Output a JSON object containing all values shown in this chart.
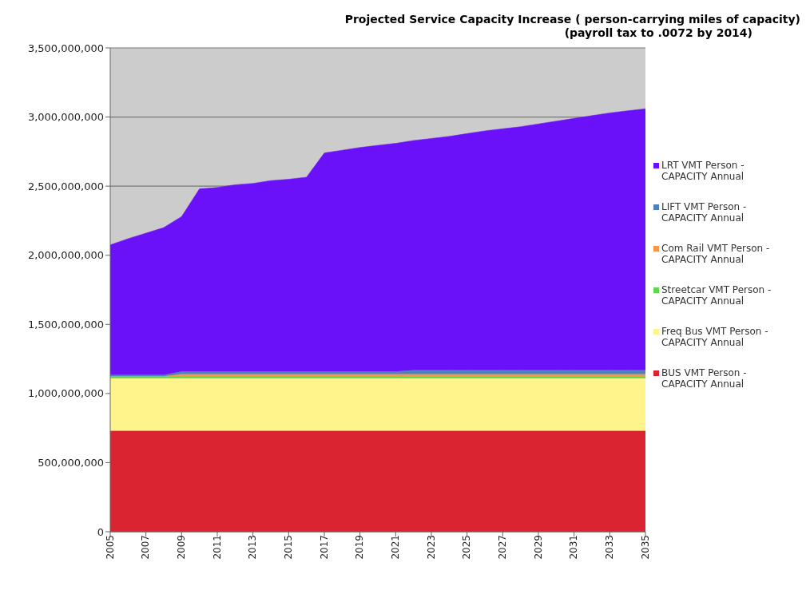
{
  "chart_data": {
    "type": "area",
    "stacked": true,
    "title": "Projected Service Capacity Increase ( person-carrying miles of capacity)",
    "subtitle": "(payroll tax to .0072 by 2014)",
    "x": [
      2005,
      2006,
      2007,
      2008,
      2009,
      2010,
      2011,
      2012,
      2013,
      2014,
      2015,
      2016,
      2017,
      2018,
      2019,
      2020,
      2021,
      2022,
      2023,
      2024,
      2025,
      2026,
      2027,
      2028,
      2029,
      2030,
      2031,
      2032,
      2033,
      2034,
      2035
    ],
    "series": [
      {
        "name": "BUS VMT Person - CAPACITY Annual",
        "color": "#db2432",
        "values": [
          730000000,
          730000000,
          730000000,
          730000000,
          730000000,
          730000000,
          730000000,
          730000000,
          730000000,
          730000000,
          730000000,
          730000000,
          730000000,
          730000000,
          730000000,
          730000000,
          730000000,
          730000000,
          730000000,
          730000000,
          730000000,
          730000000,
          730000000,
          730000000,
          730000000,
          730000000,
          730000000,
          730000000,
          730000000,
          730000000,
          730000000
        ]
      },
      {
        "name": "Freq Bus VMT Person - CAPACITY Annual",
        "color": "#fff38c",
        "values": [
          380000000,
          380000000,
          380000000,
          380000000,
          380000000,
          380000000,
          380000000,
          380000000,
          380000000,
          380000000,
          380000000,
          380000000,
          380000000,
          380000000,
          380000000,
          380000000,
          380000000,
          380000000,
          380000000,
          380000000,
          380000000,
          380000000,
          380000000,
          380000000,
          380000000,
          380000000,
          380000000,
          380000000,
          380000000,
          380000000,
          380000000
        ]
      },
      {
        "name": "Streetcar VMT Person - CAPACITY Annual",
        "color": "#5ed84a",
        "values": [
          10000000,
          10000000,
          10000000,
          10000000,
          10000000,
          10000000,
          10000000,
          10000000,
          10000000,
          10000000,
          10000000,
          10000000,
          10000000,
          10000000,
          10000000,
          10000000,
          10000000,
          10000000,
          10000000,
          10000000,
          10000000,
          10000000,
          10000000,
          10000000,
          10000000,
          10000000,
          10000000,
          10000000,
          10000000,
          10000000,
          10000000
        ]
      },
      {
        "name": "Com Rail VMT Person - CAPACITY Annual",
        "color": "#f79646",
        "values": [
          5000000,
          5000000,
          5000000,
          5000000,
          20000000,
          20000000,
          20000000,
          20000000,
          20000000,
          20000000,
          20000000,
          20000000,
          20000000,
          20000000,
          20000000,
          20000000,
          20000000,
          20000000,
          20000000,
          20000000,
          20000000,
          20000000,
          20000000,
          20000000,
          20000000,
          20000000,
          20000000,
          20000000,
          20000000,
          20000000,
          20000000
        ]
      },
      {
        "name": "LIFT VMT Person - CAPACITY Annual",
        "color": "#4f81bd",
        "values": [
          10000000,
          10000000,
          10000000,
          10000000,
          20000000,
          20000000,
          20000000,
          20000000,
          20000000,
          20000000,
          20000000,
          20000000,
          20000000,
          20000000,
          20000000,
          20000000,
          20000000,
          30000000,
          30000000,
          30000000,
          30000000,
          30000000,
          30000000,
          30000000,
          30000000,
          30000000,
          30000000,
          30000000,
          30000000,
          30000000,
          30000000
        ]
      },
      {
        "name": "LRT VMT Person - CAPACITY Annual",
        "color": "#6a11fa",
        "values": [
          940000000,
          985000000,
          1025000000,
          1065000000,
          1120000000,
          1320000000,
          1330000000,
          1350000000,
          1360000000,
          1380000000,
          1390000000,
          1405000000,
          1580000000,
          1600000000,
          1620000000,
          1635000000,
          1650000000,
          1660000000,
          1675000000,
          1690000000,
          1710000000,
          1730000000,
          1745000000,
          1760000000,
          1780000000,
          1800000000,
          1820000000,
          1840000000,
          1860000000,
          1875000000,
          1890000000
        ]
      }
    ],
    "xlim": [
      2005,
      2035
    ],
    "xticks": [
      2005,
      2007,
      2009,
      2011,
      2013,
      2015,
      2017,
      2019,
      2021,
      2023,
      2025,
      2027,
      2029,
      2031,
      2033,
      2035
    ],
    "ylim": [
      0,
      3500000000
    ],
    "yticks": [
      0,
      {
        "value": 500000000,
        "label": "500,000,000"
      },
      {
        "value": 1000000000,
        "label": "1,000,000,000"
      },
      {
        "value": 1500000000,
        "label": "1,500,000,000"
      },
      {
        "value": 2000000000,
        "label": "2,000,000,000"
      },
      {
        "value": 2500000000,
        "label": "2,500,000,000"
      },
      {
        "value": 3000000000,
        "label": "3,000,000,000"
      },
      {
        "value": 3500000000,
        "label": "3,500,000,000"
      }
    ],
    "grid": "y",
    "legend": "right"
  }
}
